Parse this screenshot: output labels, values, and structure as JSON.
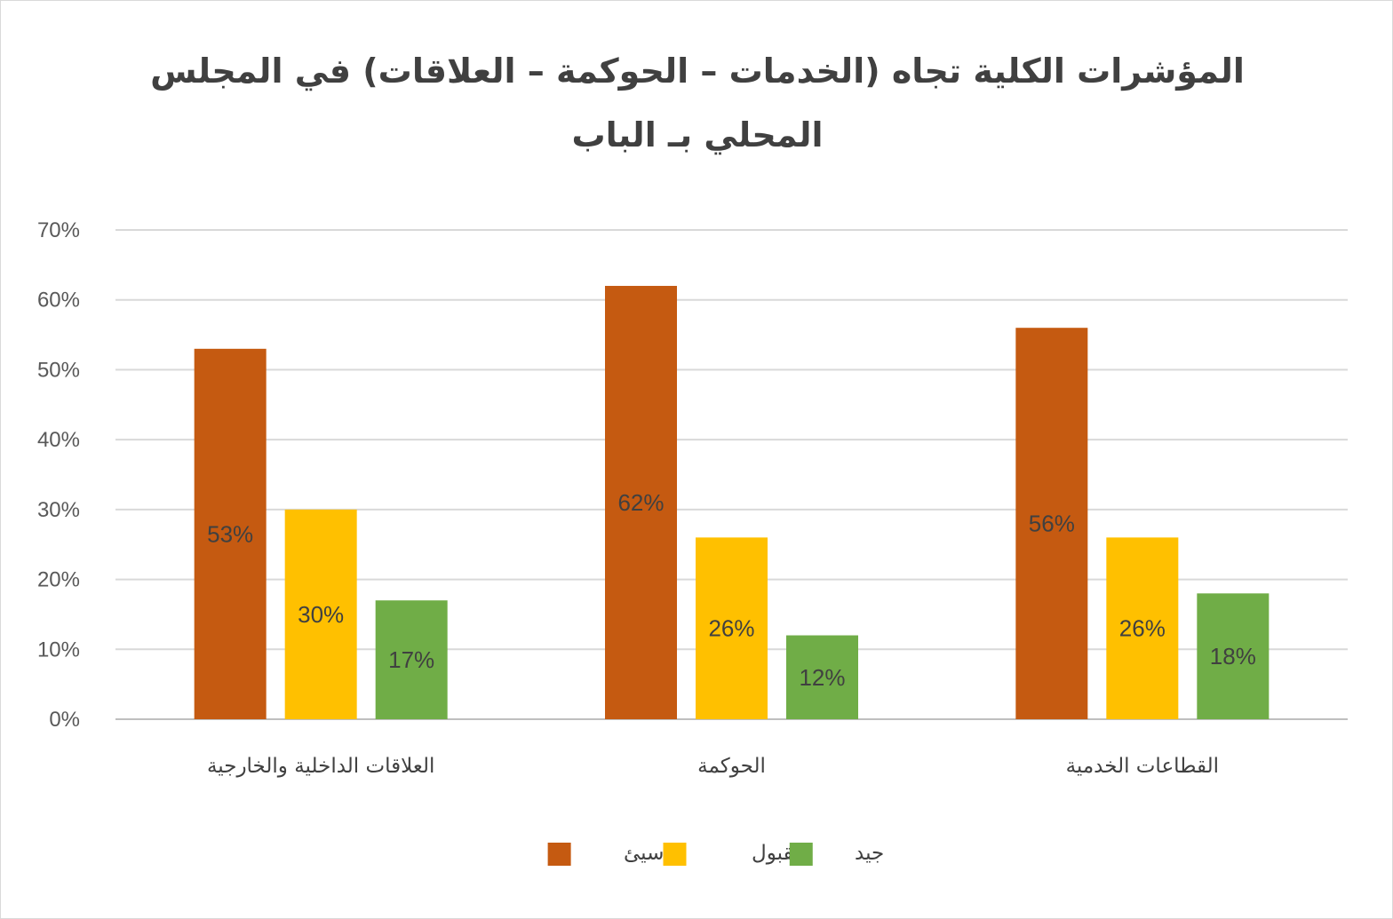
{
  "chart_data": {
    "type": "bar",
    "title": "المؤشرات الكلية تجاه (الخدمات – الحوكمة – العلاقات) في المجلس المحلي بـ الباب",
    "categories": [
      "العلاقات الداخلية والخارجية",
      "الحوكمة",
      "القطاعات الخدمية"
    ],
    "series": [
      {
        "name": "سيئ",
        "values": [
          53,
          62,
          56
        ],
        "color": "#C55A11"
      },
      {
        "name": "مقبول",
        "values": [
          30,
          26,
          26
        ],
        "color": "#FFC000"
      },
      {
        "name": "جيد",
        "values": [
          17,
          12,
          18
        ],
        "color": "#70AD47"
      }
    ],
    "value_suffix": "%",
    "ylim": [
      0,
      70
    ],
    "yticks": [
      0,
      10,
      20,
      30,
      40,
      50,
      60,
      70
    ],
    "grid": true,
    "legend_position": "bottom",
    "data_labels": true
  }
}
